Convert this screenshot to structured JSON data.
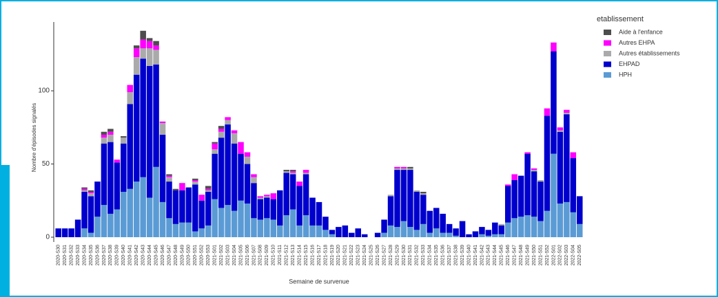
{
  "chart_data": {
    "type": "bar",
    "stacked": true,
    "y_label": "Nombre d'épisodes signalés",
    "x_label": "Semaine de survenue",
    "legend_title": "etablissement",
    "categories": [
      "2020-S30",
      "2020-S31",
      "2020-S32",
      "2020-S33",
      "2020-S34",
      "2020-S35",
      "2020-S36",
      "2020-S37",
      "2020-S38",
      "2020-S39",
      "2020-S40",
      "2020-S41",
      "2020-S42",
      "2020-S43",
      "2020-S44",
      "2020-S45",
      "2020-S46",
      "2020-S47",
      "2020-S48",
      "2020-S49",
      "2020-S50",
      "2020-S51",
      "2020-S52",
      "2020-S53",
      "2021-S01",
      "2021-S02",
      "2021-S03",
      "2021-S04",
      "2021-S05",
      "2021-S06",
      "2021-S07",
      "2021-S08",
      "2021-S09",
      "2021-S10",
      "2021-S11",
      "2021-S12",
      "2021-S13",
      "2021-S14",
      "2021-S15",
      "2021-S16",
      "2021-S17",
      "2021-S18",
      "2021-S19",
      "2021-S20",
      "2021-S21",
      "2021-S22",
      "2021-S23",
      "2021-S24",
      "2021-S25",
      "2021-S26",
      "2021-S27",
      "2021-S28",
      "2021-S29",
      "2021-S30",
      "2021-S31",
      "2021-S32",
      "2021-S33",
      "2021-S34",
      "2021-S35",
      "2021-S36",
      "2021-S37",
      "2021-S38",
      "2021-S39",
      "2021-S40",
      "2021-S41",
      "2021-S42",
      "2021-S43",
      "2021-S44",
      "2021-S45",
      "2021-S46",
      "2021-S47",
      "2021-S48",
      "2021-S49",
      "2021-S50",
      "2021-S51",
      "2021-S52",
      "2022-S01",
      "2022-S02",
      "2022-S03",
      "2022-S04",
      "2022-S05"
    ],
    "series": [
      {
        "name": "Aide à l'enfance",
        "color": "#4d4d4d",
        "values": [
          0,
          0,
          0,
          0,
          1,
          1,
          0,
          2,
          2,
          0,
          1,
          0,
          2,
          6,
          2,
          3,
          0,
          1,
          1,
          0,
          0,
          1,
          0,
          2,
          1,
          2,
          0,
          0,
          0,
          0,
          0,
          0,
          0,
          0,
          0,
          1,
          1,
          0,
          0,
          0,
          0,
          0,
          0,
          0,
          0,
          0,
          0,
          0,
          0,
          0,
          0,
          0,
          0,
          0,
          1,
          0,
          1,
          0,
          0,
          0,
          0,
          0,
          0,
          0,
          0,
          0,
          0,
          0,
          0,
          0,
          0,
          0,
          0,
          0,
          0,
          0,
          0,
          0,
          0,
          0,
          0
        ]
      },
      {
        "name": "Autres EHPA",
        "color": "#ff00ff",
        "values": [
          0,
          0,
          0,
          0,
          1,
          1,
          0,
          2,
          2,
          2,
          0,
          5,
          6,
          6,
          5,
          3,
          1,
          1,
          0,
          5,
          0,
          1,
          4,
          1,
          4,
          2,
          2,
          2,
          8,
          3,
          2,
          1,
          1,
          4,
          0,
          0,
          1,
          3,
          2,
          0,
          0,
          0,
          0,
          0,
          0,
          0,
          0,
          0,
          0,
          0,
          0,
          0,
          1,
          1,
          0,
          0,
          0,
          0,
          0,
          0,
          0,
          0,
          0,
          0,
          0,
          0,
          0,
          0,
          0,
          1,
          4,
          0,
          1,
          1,
          0,
          5,
          6,
          2,
          2,
          4,
          0
        ]
      },
      {
        "name": "Autres établissements",
        "color": "#aaaaaa",
        "values": [
          0,
          0,
          0,
          0,
          1,
          2,
          0,
          4,
          5,
          0,
          4,
          8,
          12,
          7,
          12,
          10,
          8,
          3,
          0,
          0,
          0,
          2,
          0,
          1,
          3,
          4,
          3,
          7,
          0,
          5,
          4,
          1,
          1,
          0,
          0,
          1,
          1,
          0,
          1,
          0,
          0,
          0,
          0,
          0,
          0,
          0,
          0,
          0,
          0,
          0,
          0,
          1,
          1,
          1,
          1,
          1,
          1,
          0,
          0,
          0,
          0,
          0,
          0,
          0,
          0,
          0,
          0,
          0,
          1,
          0,
          0,
          0,
          0,
          1,
          1,
          0,
          0,
          1,
          1,
          0,
          0
        ]
      },
      {
        "name": "EHPAD",
        "color": "#0000cd",
        "values": [
          6,
          6,
          6,
          12,
          25,
          25,
          24,
          42,
          49,
          32,
          33,
          58,
          73,
          81,
          90,
          70,
          46,
          25,
          23,
          22,
          24,
          32,
          19,
          23,
          31,
          48,
          55,
          46,
          32,
          27,
          24,
          14,
          14,
          14,
          24,
          29,
          24,
          27,
          28,
          19,
          16,
          9,
          3,
          7,
          8,
          3,
          6,
          2,
          0,
          3,
          9,
          20,
          39,
          35,
          39,
          26,
          20,
          15,
          14,
          13,
          6,
          5,
          11,
          2,
          4,
          5,
          4,
          8,
          6,
          25,
          26,
          28,
          42,
          31,
          27,
          65,
          70,
          49,
          60,
          37,
          19
        ]
      },
      {
        "name": "HPH",
        "color": "#5b9bd5",
        "values": [
          0,
          0,
          0,
          0,
          6,
          3,
          14,
          22,
          16,
          19,
          31,
          33,
          38,
          41,
          27,
          48,
          24,
          13,
          9,
          10,
          10,
          4,
          6,
          8,
          26,
          20,
          22,
          18,
          25,
          23,
          13,
          12,
          13,
          12,
          8,
          15,
          19,
          8,
          15,
          8,
          8,
          5,
          2,
          0,
          0,
          0,
          0,
          0,
          0,
          0,
          3,
          8,
          7,
          11,
          7,
          5,
          9,
          3,
          6,
          3,
          3,
          1,
          0,
          0,
          0,
          2,
          1,
          2,
          2,
          10,
          13,
          14,
          15,
          14,
          11,
          18,
          57,
          23,
          24,
          17,
          9
        ]
      }
    ],
    "ylim": [
      -3,
      147
    ],
    "yticks": [
      0,
      50,
      100
    ]
  }
}
